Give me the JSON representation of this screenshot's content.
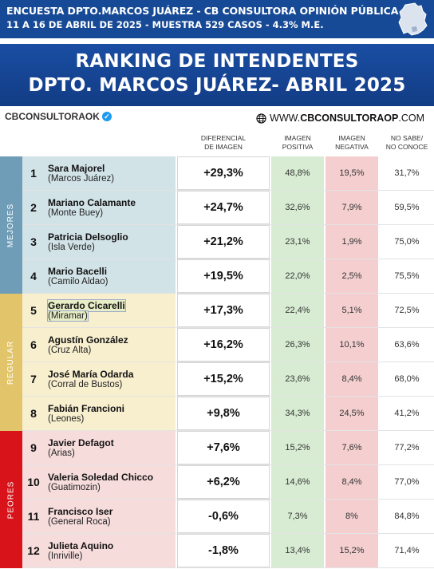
{
  "header": {
    "line1": "ENCUESTA DPTO.MARCOS JUÁREZ - CB CONSULTORA OPINIÓN PÚBLICA",
    "line2": "11 A 16 DE ABRIL  DE 2025 - MUESTRA 529 CASOS - 4.3% M.E."
  },
  "title": {
    "line1": "RANKING DE INTENDENTES",
    "line2": "DPTO. MARCOS JUÁREZ- ABRIL 2025"
  },
  "brand": {
    "left": "CBCONSULTORAOK",
    "right_prefix": "WWW.",
    "right_bold": "CBCONSULTORAOP",
    "right_suffix": ".COM"
  },
  "columns": {
    "diff": [
      "DIFERENCIAL",
      "DE IMAGEN"
    ],
    "pos": [
      "IMAGEN",
      "POSITIVA"
    ],
    "neg": [
      "IMAGEN",
      "NEGATIVA"
    ],
    "ns": [
      "NO SABE/",
      "NO CONOCE"
    ]
  },
  "groups": [
    {
      "label": "MEJORES",
      "color": "#6f9db8",
      "tint": "#d2e3e8"
    },
    {
      "label": "REGULAR",
      "color": "#e2c56a",
      "tint": "#f8efcf"
    },
    {
      "label": "PEORES",
      "color": "#d8141a",
      "tint": "#f7dcdc"
    }
  ],
  "rows": [
    {
      "rank": "1",
      "name": "Sara Majorel",
      "place": "(Marcos Juárez)",
      "diff": "+29,3%",
      "pos": "48,8%",
      "neg": "19,5%",
      "ns": "31,7%"
    },
    {
      "rank": "2",
      "name": "Mariano Calamante",
      "place": "(Monte Buey)",
      "diff": "+24,7%",
      "pos": "32,6%",
      "neg": "7,9%",
      "ns": "59,5%"
    },
    {
      "rank": "3",
      "name": "Patricia Delsoglio",
      "place": "(Isla Verde)",
      "diff": "+21,2%",
      "pos": "23,1%",
      "neg": "1,9%",
      "ns": "75,0%"
    },
    {
      "rank": "4",
      "name": "Mario Bacelli",
      "place": "(Camilo Aldao)",
      "diff": "+19,5%",
      "pos": "22,0%",
      "neg": "2,5%",
      "ns": "75,5%"
    },
    {
      "rank": "5",
      "name": "Gerardo Cicarelli",
      "place": "(Miramar)",
      "diff": "+17,3%",
      "pos": "22,4%",
      "neg": "5,1%",
      "ns": "72,5%"
    },
    {
      "rank": "6",
      "name": "Agustín González",
      "place": "(Cruz Alta)",
      "diff": "+16,2%",
      "pos": "26,3%",
      "neg": "10,1%",
      "ns": "63,6%"
    },
    {
      "rank": "7",
      "name": "José María Odarda",
      "place": "(Corral de Bustos)",
      "diff": "+15,2%",
      "pos": "23,6%",
      "neg": "8,4%",
      "ns": "68,0%"
    },
    {
      "rank": "8",
      "name": "Fabián Francioni",
      "place": "(Leones)",
      "diff": "+9,8%",
      "pos": "34,3%",
      "neg": "24,5%",
      "ns": "41,2%"
    },
    {
      "rank": "9",
      "name": "Javier Defagot",
      "place": "(Arias)",
      "diff": "+7,6%",
      "pos": "15,2%",
      "neg": "7,6%",
      "ns": "77,2%"
    },
    {
      "rank": "10",
      "name": "Valeria Soledad Chicco",
      "place": "(Guatimozin)",
      "diff": "+6,2%",
      "pos": "14,6%",
      "neg": "8,4%",
      "ns": "77,0%"
    },
    {
      "rank": "11",
      "name": "Francisco Iser",
      "place": "(General Roca)",
      "diff": "-0,6%",
      "pos": "7,3%",
      "neg": "8%",
      "ns": "84,8%"
    },
    {
      "rank": "12",
      "name": "Julieta Aquino",
      "place": "(Inriville)",
      "diff": "-1,8%",
      "pos": "13,4%",
      "neg": "15,2%",
      "ns": "71,4%"
    }
  ]
}
